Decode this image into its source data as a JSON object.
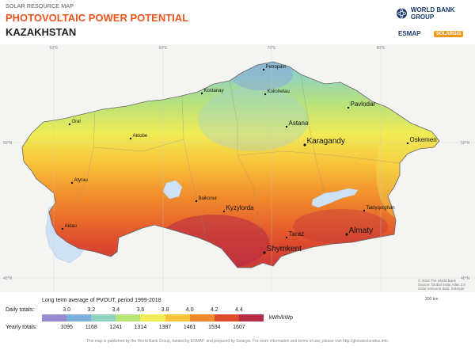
{
  "header": {
    "kicker": "SOLAR RESOURCE MAP",
    "title": "PHOTOVOLTAIC POWER POTENTIAL",
    "country": "KAZAKHSTAN",
    "org_worldbank": "WORLD BANK GROUP",
    "org_esmap": "ESMAP",
    "org_solargis": "SOLARGIS"
  },
  "graticule": {
    "lon_labels": [
      "50°E",
      "60°E",
      "70°E",
      "80°E"
    ],
    "lat_labels": [
      "50°N",
      "40°N"
    ]
  },
  "cities": [
    {
      "name": "Petropavl",
      "size": "small"
    },
    {
      "name": "Kostanay",
      "size": "small"
    },
    {
      "name": "Kokshetau",
      "size": "small"
    },
    {
      "name": "Pavlodar",
      "size": "medium"
    },
    {
      "name": "Oral",
      "size": "small"
    },
    {
      "name": "Aktobe",
      "size": "small"
    },
    {
      "name": "Astana",
      "size": "medium"
    },
    {
      "name": "Karagandy",
      "size": "large"
    },
    {
      "name": "Oskemen",
      "size": "medium"
    },
    {
      "name": "Atyrau",
      "size": "small"
    },
    {
      "name": "Baikonur",
      "size": "small"
    },
    {
      "name": "Kyzylorda",
      "size": "medium"
    },
    {
      "name": "Taldyqorghan",
      "size": "small"
    },
    {
      "name": "Aktau",
      "size": "small"
    },
    {
      "name": "Almaty",
      "size": "large"
    },
    {
      "name": "Taraz",
      "size": "medium"
    },
    {
      "name": "Shymkent",
      "size": "large"
    }
  ],
  "credit": [
    "© 2019 The World Bank",
    "Source: Global Solar Atlas 2.0",
    "Solar resource data: Solargis"
  ],
  "scale_label": "200 km",
  "legend": {
    "title": "Long term average of PVOUT, period 1999-2018",
    "daily_label": "Daily totals:",
    "daily_ticks": [
      "3.0",
      "3.2",
      "3.4",
      "3.6",
      "3.8",
      "4.0",
      "4.2",
      "4.4"
    ],
    "yearly_label": "Yearly totals:",
    "yearly_ticks": [
      "1095",
      "1168",
      "1241",
      "1314",
      "1387",
      "1461",
      "1534",
      "1607"
    ],
    "unit": "kWh/kWp",
    "colors": [
      "#9a8ad0",
      "#7fb0dc",
      "#8fd3c0",
      "#b8e27a",
      "#f0ec55",
      "#f9c33a",
      "#f08a2c",
      "#e04b2d",
      "#b52a45"
    ]
  },
  "footer": "This map is published by the World Bank Group, funded by ESMAP, and prepared by Solargis. For more information and terms of use, please visit http://globalsolaratlas.info."
}
